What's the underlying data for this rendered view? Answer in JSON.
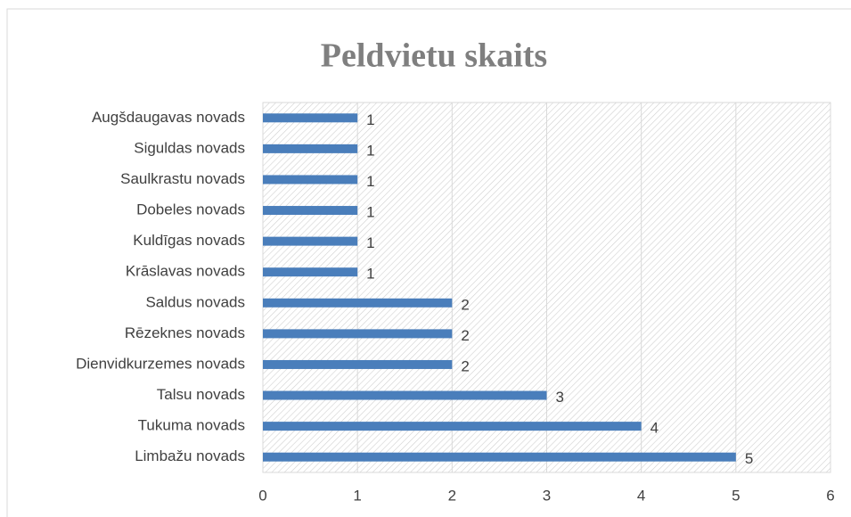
{
  "chart_data": {
    "type": "bar",
    "orientation": "horizontal",
    "title": "Peldvietu skaits",
    "categories": [
      "Augšdaugavas novads",
      "Siguldas novads",
      "Saulkrastu novads",
      "Dobeles novads",
      "Kuldīgas novads",
      "Krāslavas novads",
      "Saldus novads",
      "Rēzeknes novads",
      "Dienvidkurzemes novads",
      "Talsu novads",
      "Tukuma novads",
      "Limbažu novads"
    ],
    "values": [
      1,
      1,
      1,
      1,
      1,
      1,
      2,
      2,
      2,
      3,
      4,
      5
    ],
    "color": "#4a7ebb",
    "xlim": [
      0,
      6
    ],
    "xticks": [
      0,
      1,
      2,
      3,
      4,
      5,
      6
    ],
    "grid": true
  }
}
